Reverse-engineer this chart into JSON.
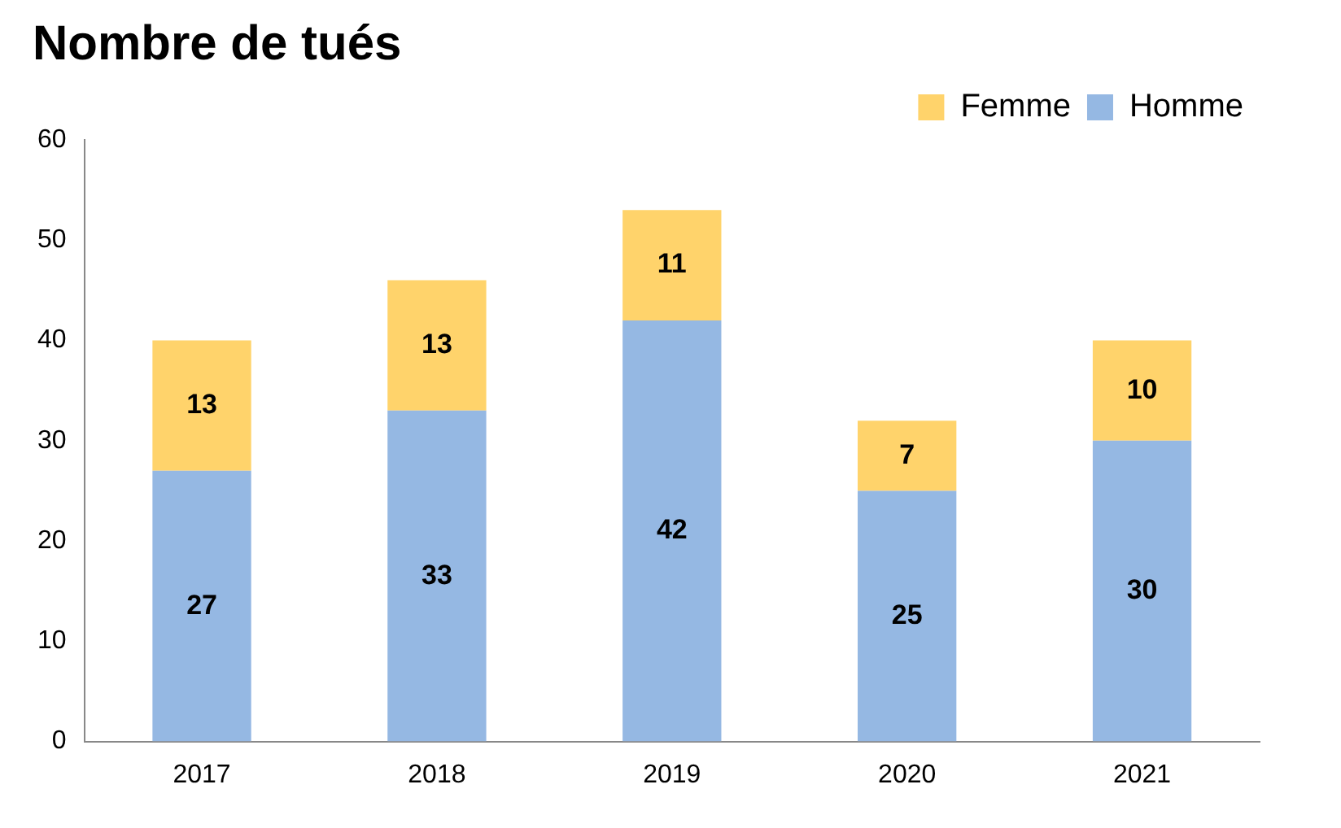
{
  "chart_data": {
    "type": "bar",
    "title": "Nombre de tués",
    "categories": [
      "2017",
      "2018",
      "2019",
      "2020",
      "2021"
    ],
    "stacked": true,
    "series": [
      {
        "name": "Homme",
        "color": "#95b8e3",
        "values": [
          27,
          33,
          42,
          25,
          30
        ]
      },
      {
        "name": "Femme",
        "color": "#ffd36b",
        "values": [
          13,
          13,
          11,
          7,
          10
        ]
      }
    ],
    "ylim": [
      0,
      60
    ],
    "yticks": [
      0,
      10,
      20,
      30,
      40,
      50,
      60
    ],
    "grid": false,
    "legend": "top right",
    "data_labels": true
  }
}
